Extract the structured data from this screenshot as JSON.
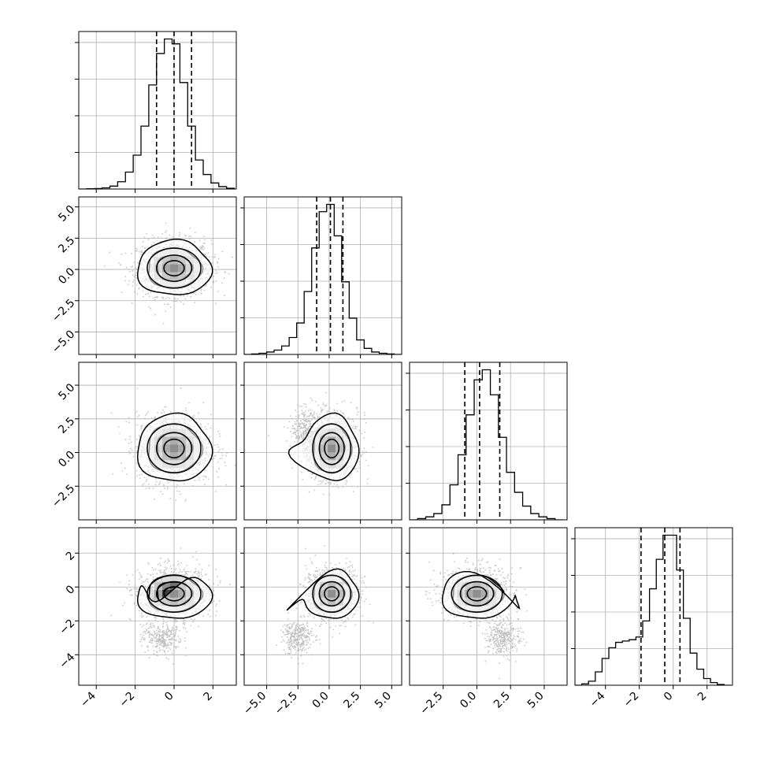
{
  "chart_data": {
    "type": "corner",
    "n_params": 4,
    "param_ranges": [
      [
        -4.9,
        3.2
      ],
      [
        -6.8,
        5.8
      ],
      [
        -5.0,
        6.7
      ],
      [
        -5.8,
        3.5
      ]
    ],
    "ticks": [
      [
        -4,
        -2,
        0,
        2
      ],
      [
        -5.0,
        -2.5,
        0.0,
        2.5,
        5.0
      ],
      [
        -2.5,
        0.0,
        2.5,
        5.0
      ],
      [
        -4,
        -2,
        0,
        2
      ]
    ],
    "tick_labels": [
      [
        "−4",
        "−2",
        "0",
        "2"
      ],
      [
        "−5.0",
        "−2.5",
        "0.0",
        "2.5",
        "5.0"
      ],
      [
        "−2.5",
        "0.0",
        "2.5",
        "5.0"
      ],
      [
        "−4",
        "−2",
        "0",
        "2"
      ]
    ],
    "grid": true,
    "histograms": [
      {
        "param": 0,
        "bin_edges": [
          -4.9,
          -4.5,
          -4.1,
          -3.7,
          -3.3,
          -2.9,
          -2.5,
          -2.1,
          -1.7,
          -1.3,
          -0.9,
          -0.5,
          -0.1,
          0.3,
          0.7,
          1.1,
          1.5,
          1.9,
          2.3,
          2.7,
          3.1
        ],
        "counts": [
          0,
          1,
          2,
          5,
          12,
          30,
          70,
          140,
          260,
          430,
          560,
          620,
          600,
          440,
          260,
          120,
          60,
          25,
          10,
          3
        ],
        "quantiles": [
          -0.9,
          0.0,
          0.9
        ]
      },
      {
        "param": 1,
        "bin_edges": [
          -6.8,
          -6.2,
          -5.6,
          -5.0,
          -4.4,
          -3.8,
          -3.2,
          -2.6,
          -2.0,
          -1.4,
          -0.8,
          -0.2,
          0.4,
          1.0,
          1.6,
          2.2,
          2.8,
          3.4,
          4.0,
          4.6,
          5.2,
          5.8
        ],
        "counts": [
          0,
          2,
          5,
          10,
          18,
          35,
          70,
          130,
          260,
          440,
          590,
          620,
          490,
          300,
          150,
          60,
          25,
          10,
          5,
          2,
          0
        ],
        "quantiles": [
          -1.0,
          0.1,
          1.1
        ]
      },
      {
        "param": 2,
        "bin_edges": [
          -5.0,
          -4.4,
          -3.8,
          -3.2,
          -2.6,
          -2.0,
          -1.4,
          -0.8,
          -0.2,
          0.4,
          1.0,
          1.6,
          2.2,
          2.8,
          3.4,
          4.0,
          4.6,
          5.2,
          5.8,
          6.4
        ],
        "counts": [
          0,
          5,
          12,
          25,
          60,
          140,
          260,
          420,
          560,
          600,
          500,
          330,
          190,
          110,
          55,
          25,
          12,
          5,
          0
        ],
        "quantiles": [
          -0.9,
          0.2,
          1.7
        ]
      },
      {
        "param": 3,
        "bin_edges": [
          -5.8,
          -5.4,
          -5.0,
          -4.6,
          -4.2,
          -3.8,
          -3.4,
          -3.0,
          -2.6,
          -2.2,
          -1.8,
          -1.4,
          -1.0,
          -0.6,
          -0.2,
          0.2,
          0.6,
          1.0,
          1.4,
          1.8,
          2.2,
          2.6,
          3.0,
          3.4
        ],
        "counts": [
          0,
          5,
          15,
          50,
          100,
          140,
          160,
          165,
          170,
          180,
          240,
          360,
          470,
          560,
          560,
          430,
          250,
          120,
          60,
          25,
          10,
          3,
          0
        ],
        "quantiles": [
          -1.9,
          -0.5,
          0.4
        ]
      }
    ],
    "joint_panels": [
      {
        "x_param": 0,
        "y_param": 1
      },
      {
        "x_param": 0,
        "y_param": 2
      },
      {
        "x_param": 1,
        "y_param": 2
      },
      {
        "x_param": 0,
        "y_param": 3
      },
      {
        "x_param": 1,
        "y_param": 3
      },
      {
        "x_param": 2,
        "y_param": 3
      }
    ],
    "contour_levels": [
      "0.5-sigma",
      "1-sigma",
      "1.5-sigma",
      "2-sigma"
    ]
  }
}
